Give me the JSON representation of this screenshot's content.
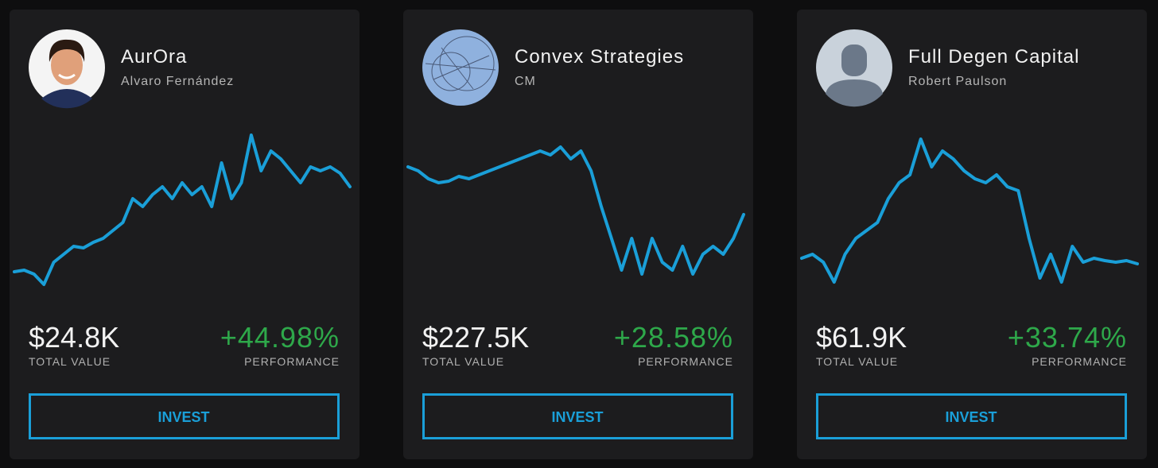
{
  "cards": [
    {
      "name": "AurOra",
      "manager": "Alvaro Fernández",
      "total_value": "$24.8K",
      "total_value_caption": "TOTAL VALUE",
      "performance": "+44.98%",
      "performance_caption": "PERFORMANCE",
      "button": "INVEST",
      "sparkline": [
        11.5,
        12.5,
        10,
        3.5,
        17.5,
        22.5,
        27.5,
        26.5,
        30,
        32.5,
        37.5,
        42.5,
        57.5,
        52.5,
        60,
        65,
        57.5,
        67.5,
        60,
        65,
        52.5,
        80,
        57.5,
        67.5,
        97.5,
        75,
        87.5,
        82.5,
        75,
        67.5,
        77.5,
        75,
        77.5,
        73.5,
        65
      ]
    },
    {
      "name": "Convex Strategies",
      "manager": "CM",
      "total_value": "$227.5K",
      "total_value_caption": "TOTAL VALUE",
      "performance": "+28.58%",
      "performance_caption": "PERFORMANCE",
      "button": "INVEST",
      "sparkline": [
        77.5,
        75,
        70,
        67.5,
        68.5,
        71.5,
        70,
        72.5,
        75,
        77.5,
        80,
        82.5,
        85,
        87.5,
        85,
        90,
        82.5,
        87.5,
        75,
        52.5,
        32.5,
        12.5,
        32.5,
        10,
        32.5,
        17.5,
        12.5,
        27.5,
        10,
        22.5,
        27.5,
        22.5,
        32.5,
        47.5
      ]
    },
    {
      "name": "Full Degen Capital",
      "manager": "Robert Paulson",
      "total_value": "$61.9K",
      "total_value_caption": "TOTAL VALUE",
      "performance": "+33.74%",
      "performance_caption": "PERFORMANCE",
      "button": "INVEST",
      "sparkline": [
        20,
        22.5,
        17.5,
        5,
        22.5,
        32.5,
        37.5,
        42.5,
        57.5,
        67.5,
        72.5,
        95,
        77.5,
        87.5,
        82.5,
        75,
        70,
        67.5,
        72.5,
        65,
        62.5,
        32.5,
        7.5,
        22.5,
        5,
        27.5,
        17.5,
        20,
        18.5,
        17.5,
        18.5,
        16.5
      ]
    }
  ]
}
